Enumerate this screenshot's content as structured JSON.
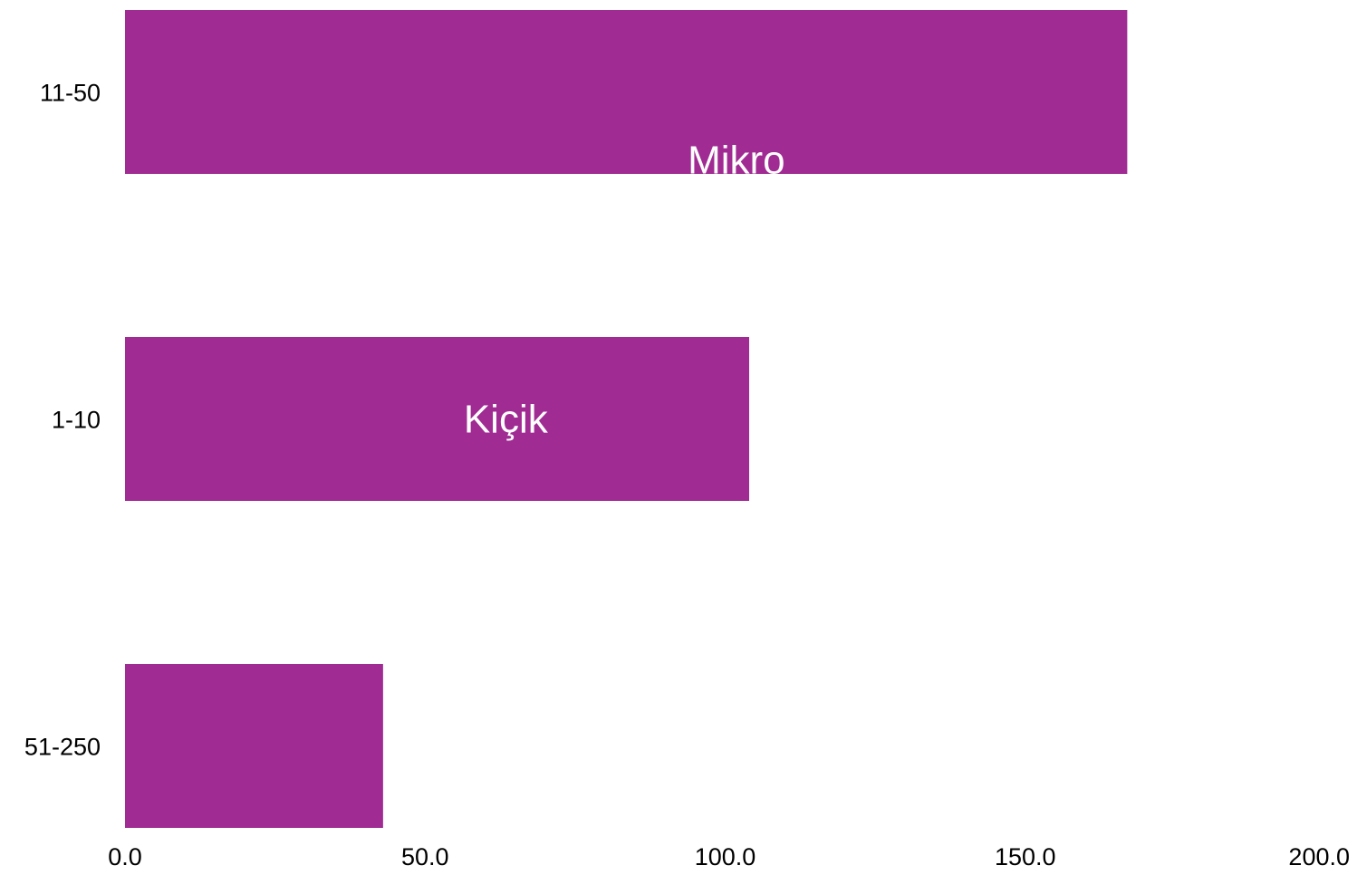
{
  "chart_data": {
    "type": "bar",
    "orientation": "horizontal",
    "categories": [
      "11-50",
      "1-10",
      "51-250"
    ],
    "values": [
      167,
      104,
      43
    ],
    "data_labels": [
      "Mikro",
      "Kiçik",
      ""
    ],
    "xlim": [
      0,
      200
    ],
    "xticks": [
      "0.0",
      "50.0",
      "100.0",
      "150.0",
      "200.0"
    ],
    "bar_color": "#a02b93",
    "grid": false,
    "legend": "none"
  }
}
